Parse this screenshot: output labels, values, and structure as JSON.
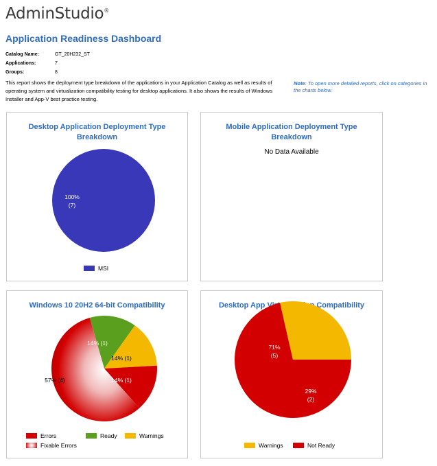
{
  "header": {
    "logo_text": "AdminStudio",
    "logo_mark": "®",
    "page_title": "Application Readiness Dashboard"
  },
  "catalog_info": {
    "catalog_name_label": "Catalog Name:",
    "catalog_name_value": "GT_20H232_ST",
    "applications_label": "Applications:",
    "applications_value": "7",
    "groups_label": "Groups:",
    "groups_value": "8"
  },
  "description": "This report shows the deployment type breakdown of the applications in your Application Catalog as well as results of operating system and virtualization compatibility testing for desktop applications. It also shows the results of Windows Installer and App-V best practice testing.",
  "note": {
    "label": "Note",
    "text": ": To open more detailed reports, click on categories in the charts below."
  },
  "colors": {
    "accent": "#2e6cc3",
    "msi": "#3838b8",
    "errors": "#d20000",
    "ready": "#5aa01e",
    "warnings": "#f5b800",
    "not_ready": "#d20000"
  },
  "chart_data": [
    {
      "type": "pie",
      "title": "Desktop Application Deployment Type Breakdown",
      "slices": [
        {
          "name": "MSI",
          "value": 7,
          "pct_label": "100%",
          "count_label": "(7)",
          "color": "#3838b8"
        }
      ],
      "legend": [
        "MSI"
      ]
    },
    {
      "type": "pie",
      "title": "Mobile Application Deployment Type Breakdown",
      "slices": [],
      "empty_text": "No Data Available"
    },
    {
      "type": "pie",
      "title": "Windows 10 20H2 64-bit Compatibility",
      "slices": [
        {
          "name": "Ready",
          "value": 1,
          "label": "14% (1)",
          "color": "#5aa01e"
        },
        {
          "name": "Warnings",
          "value": 1,
          "label": "14% (1)",
          "color": "#f5b800"
        },
        {
          "name": "Errors",
          "value": 1,
          "label": "14% (1)",
          "color": "#d20000"
        },
        {
          "name": "Fixable Errors",
          "value": 4,
          "label": "57% (4)",
          "color": "#d20000"
        }
      ],
      "legend": [
        "Errors",
        "Ready",
        "Warnings",
        "Fixable Errors"
      ]
    },
    {
      "type": "pie",
      "title": "Desktop App Virtualization Compatibility",
      "slices": [
        {
          "name": "Not Ready",
          "value": 5,
          "pct_label": "71%",
          "count_label": "(5)",
          "color": "#d20000"
        },
        {
          "name": "Warnings",
          "value": 2,
          "pct_label": "29%",
          "count_label": "(2)",
          "color": "#f5b800"
        }
      ],
      "legend": [
        "Warnings",
        "Not Ready"
      ]
    }
  ]
}
